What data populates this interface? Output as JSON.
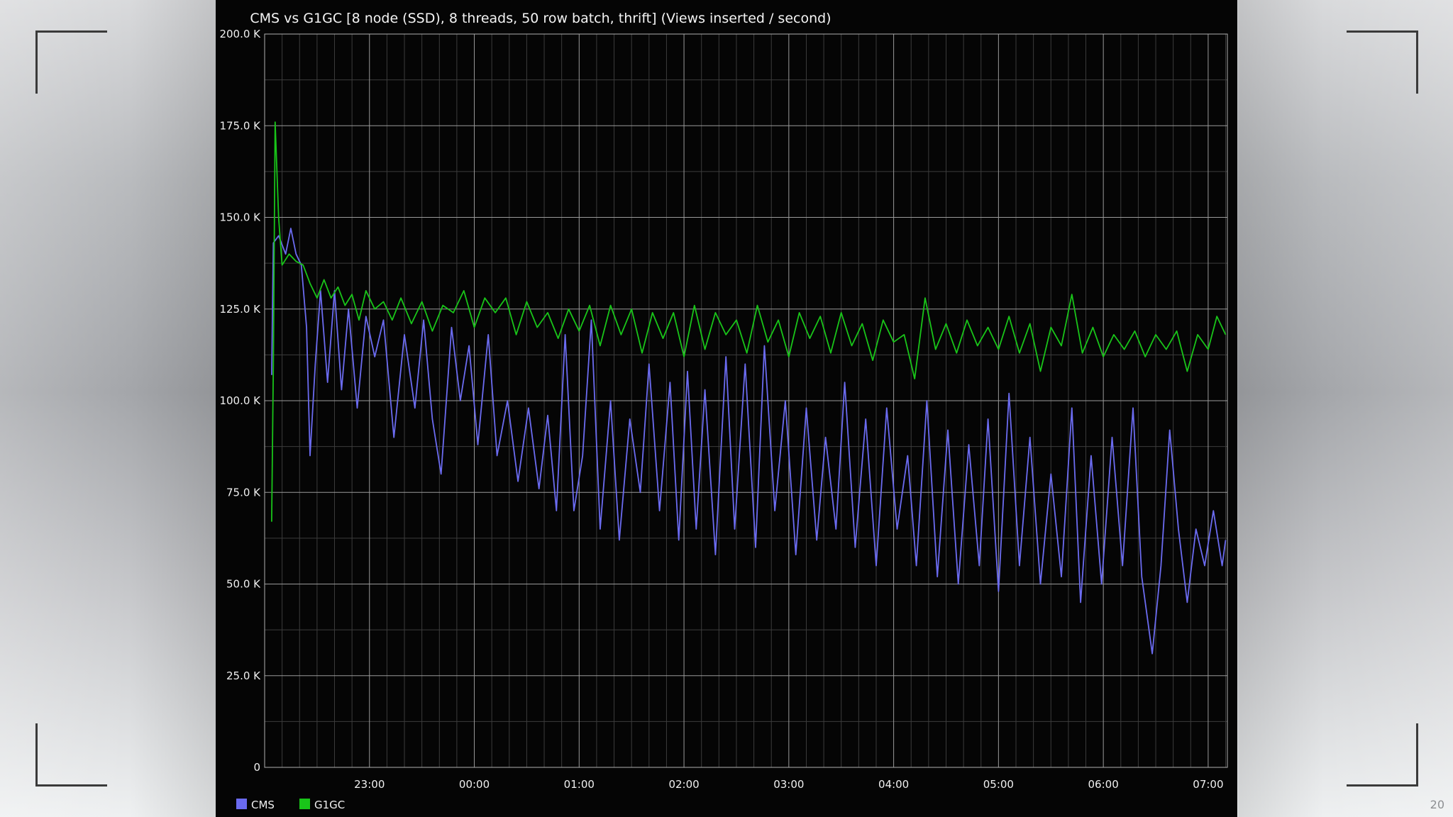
{
  "slide": {
    "number": "20"
  },
  "chart_data": {
    "type": "line",
    "title": "CMS vs G1GC [8 node (SSD), 8 threads, 50 row batch, thrift] (Views inserted / second)",
    "xlabel": "",
    "ylabel": "",
    "x_range": [
      "22:00",
      "07:11"
    ],
    "x_tick_labels": [
      "23:00",
      "00:00",
      "01:00",
      "02:00",
      "03:00",
      "04:00",
      "05:00",
      "06:00",
      "07:00"
    ],
    "y_tick_labels": [
      "0",
      "25.0 K",
      "50.0 K",
      "75.0 K",
      "100.0 K",
      "125.0 K",
      "150.0 K",
      "175.0 K",
      "200.0 K"
    ],
    "ylim": [
      0,
      200000
    ],
    "grid": true,
    "legend_position": "bottom-left",
    "series": [
      {
        "name": "CMS",
        "color": "#6b6bf0",
        "points": [
          [
            "22:04",
            107000
          ],
          [
            "22:05",
            143000
          ],
          [
            "22:08",
            145000
          ],
          [
            "22:12",
            140000
          ],
          [
            "22:15",
            147000
          ],
          [
            "22:18",
            140000
          ],
          [
            "22:21",
            137000
          ],
          [
            "22:24",
            120000
          ],
          [
            "22:26",
            85000
          ],
          [
            "22:29",
            110000
          ],
          [
            "22:32",
            130000
          ],
          [
            "22:36",
            105000
          ],
          [
            "22:40",
            130000
          ],
          [
            "22:44",
            103000
          ],
          [
            "22:48",
            125000
          ],
          [
            "22:53",
            98000
          ],
          [
            "22:58",
            123000
          ],
          [
            "23:03",
            112000
          ],
          [
            "23:08",
            122000
          ],
          [
            "23:14",
            90000
          ],
          [
            "23:20",
            118000
          ],
          [
            "23:26",
            98000
          ],
          [
            "23:31",
            122000
          ],
          [
            "23:36",
            95000
          ],
          [
            "23:41",
            80000
          ],
          [
            "23:47",
            120000
          ],
          [
            "23:52",
            100000
          ],
          [
            "23:57",
            115000
          ],
          [
            "00:02",
            88000
          ],
          [
            "00:08",
            118000
          ],
          [
            "00:13",
            85000
          ],
          [
            "00:19",
            100000
          ],
          [
            "00:25",
            78000
          ],
          [
            "00:31",
            98000
          ],
          [
            "00:37",
            76000
          ],
          [
            "00:42",
            96000
          ],
          [
            "00:47",
            70000
          ],
          [
            "00:52",
            118000
          ],
          [
            "00:57",
            70000
          ],
          [
            "01:02",
            85000
          ],
          [
            "01:07",
            122000
          ],
          [
            "01:12",
            65000
          ],
          [
            "01:18",
            100000
          ],
          [
            "01:23",
            62000
          ],
          [
            "01:29",
            95000
          ],
          [
            "01:35",
            75000
          ],
          [
            "01:40",
            110000
          ],
          [
            "01:46",
            70000
          ],
          [
            "01:52",
            105000
          ],
          [
            "01:57",
            62000
          ],
          [
            "02:02",
            108000
          ],
          [
            "02:07",
            65000
          ],
          [
            "02:12",
            103000
          ],
          [
            "02:18",
            58000
          ],
          [
            "02:24",
            112000
          ],
          [
            "02:29",
            65000
          ],
          [
            "02:35",
            110000
          ],
          [
            "02:41",
            60000
          ],
          [
            "02:46",
            115000
          ],
          [
            "02:52",
            70000
          ],
          [
            "02:58",
            100000
          ],
          [
            "03:04",
            58000
          ],
          [
            "03:10",
            98000
          ],
          [
            "03:16",
            62000
          ],
          [
            "03:21",
            90000
          ],
          [
            "03:27",
            65000
          ],
          [
            "03:32",
            105000
          ],
          [
            "03:38",
            60000
          ],
          [
            "03:44",
            95000
          ],
          [
            "03:50",
            55000
          ],
          [
            "03:56",
            98000
          ],
          [
            "04:02",
            65000
          ],
          [
            "04:08",
            85000
          ],
          [
            "04:13",
            55000
          ],
          [
            "04:19",
            100000
          ],
          [
            "04:25",
            52000
          ],
          [
            "04:31",
            92000
          ],
          [
            "04:37",
            50000
          ],
          [
            "04:43",
            88000
          ],
          [
            "04:49",
            55000
          ],
          [
            "04:54",
            95000
          ],
          [
            "05:00",
            48000
          ],
          [
            "05:06",
            102000
          ],
          [
            "05:12",
            55000
          ],
          [
            "05:18",
            90000
          ],
          [
            "05:24",
            50000
          ],
          [
            "05:30",
            80000
          ],
          [
            "05:36",
            52000
          ],
          [
            "05:42",
            98000
          ],
          [
            "05:47",
            45000
          ],
          [
            "05:53",
            85000
          ],
          [
            "05:59",
            50000
          ],
          [
            "06:05",
            90000
          ],
          [
            "06:11",
            55000
          ],
          [
            "06:17",
            98000
          ],
          [
            "06:22",
            52000
          ],
          [
            "06:28",
            31000
          ],
          [
            "06:33",
            55000
          ],
          [
            "06:38",
            92000
          ],
          [
            "06:43",
            65000
          ],
          [
            "06:48",
            45000
          ],
          [
            "06:53",
            65000
          ],
          [
            "06:58",
            55000
          ],
          [
            "07:03",
            70000
          ],
          [
            "07:08",
            55000
          ],
          [
            "07:10",
            62000
          ]
        ]
      },
      {
        "name": "G1GC",
        "color": "#19c419",
        "points": [
          [
            "22:04",
            67000
          ],
          [
            "22:05",
            110000
          ],
          [
            "22:06",
            176000
          ],
          [
            "22:08",
            150000
          ],
          [
            "22:10",
            137000
          ],
          [
            "22:14",
            140000
          ],
          [
            "22:18",
            138000
          ],
          [
            "22:22",
            137000
          ],
          [
            "22:26",
            132000
          ],
          [
            "22:30",
            128000
          ],
          [
            "22:34",
            133000
          ],
          [
            "22:38",
            128000
          ],
          [
            "22:42",
            131000
          ],
          [
            "22:46",
            126000
          ],
          [
            "22:50",
            129000
          ],
          [
            "22:54",
            122000
          ],
          [
            "22:58",
            130000
          ],
          [
            "23:03",
            125000
          ],
          [
            "23:08",
            127000
          ],
          [
            "23:13",
            122000
          ],
          [
            "23:18",
            128000
          ],
          [
            "23:24",
            121000
          ],
          [
            "23:30",
            127000
          ],
          [
            "23:36",
            119000
          ],
          [
            "23:42",
            126000
          ],
          [
            "23:48",
            124000
          ],
          [
            "23:54",
            130000
          ],
          [
            "00:00",
            120000
          ],
          [
            "00:06",
            128000
          ],
          [
            "00:12",
            124000
          ],
          [
            "00:18",
            128000
          ],
          [
            "00:24",
            118000
          ],
          [
            "00:30",
            127000
          ],
          [
            "00:36",
            120000
          ],
          [
            "00:42",
            124000
          ],
          [
            "00:48",
            117000
          ],
          [
            "00:54",
            125000
          ],
          [
            "01:00",
            119000
          ],
          [
            "01:06",
            126000
          ],
          [
            "01:12",
            115000
          ],
          [
            "01:18",
            126000
          ],
          [
            "01:24",
            118000
          ],
          [
            "01:30",
            125000
          ],
          [
            "01:36",
            113000
          ],
          [
            "01:42",
            124000
          ],
          [
            "01:48",
            117000
          ],
          [
            "01:54",
            124000
          ],
          [
            "02:00",
            112000
          ],
          [
            "02:06",
            126000
          ],
          [
            "02:12",
            114000
          ],
          [
            "02:18",
            124000
          ],
          [
            "02:24",
            118000
          ],
          [
            "02:30",
            122000
          ],
          [
            "02:36",
            113000
          ],
          [
            "02:42",
            126000
          ],
          [
            "02:48",
            116000
          ],
          [
            "02:54",
            122000
          ],
          [
            "03:00",
            112000
          ],
          [
            "03:06",
            124000
          ],
          [
            "03:12",
            117000
          ],
          [
            "03:18",
            123000
          ],
          [
            "03:24",
            113000
          ],
          [
            "03:30",
            124000
          ],
          [
            "03:36",
            115000
          ],
          [
            "03:42",
            121000
          ],
          [
            "03:48",
            111000
          ],
          [
            "03:54",
            122000
          ],
          [
            "04:00",
            116000
          ],
          [
            "04:06",
            118000
          ],
          [
            "04:12",
            106000
          ],
          [
            "04:18",
            128000
          ],
          [
            "04:24",
            114000
          ],
          [
            "04:30",
            121000
          ],
          [
            "04:36",
            113000
          ],
          [
            "04:42",
            122000
          ],
          [
            "04:48",
            115000
          ],
          [
            "04:54",
            120000
          ],
          [
            "05:00",
            114000
          ],
          [
            "05:06",
            123000
          ],
          [
            "05:12",
            113000
          ],
          [
            "05:18",
            121000
          ],
          [
            "05:24",
            108000
          ],
          [
            "05:30",
            120000
          ],
          [
            "05:36",
            115000
          ],
          [
            "05:42",
            129000
          ],
          [
            "05:48",
            113000
          ],
          [
            "05:54",
            120000
          ],
          [
            "06:00",
            112000
          ],
          [
            "06:06",
            118000
          ],
          [
            "06:12",
            114000
          ],
          [
            "06:18",
            119000
          ],
          [
            "06:24",
            112000
          ],
          [
            "06:30",
            118000
          ],
          [
            "06:36",
            114000
          ],
          [
            "06:42",
            119000
          ],
          [
            "06:48",
            108000
          ],
          [
            "06:54",
            118000
          ],
          [
            "07:00",
            114000
          ],
          [
            "07:05",
            123000
          ],
          [
            "07:10",
            118000
          ]
        ]
      }
    ]
  }
}
